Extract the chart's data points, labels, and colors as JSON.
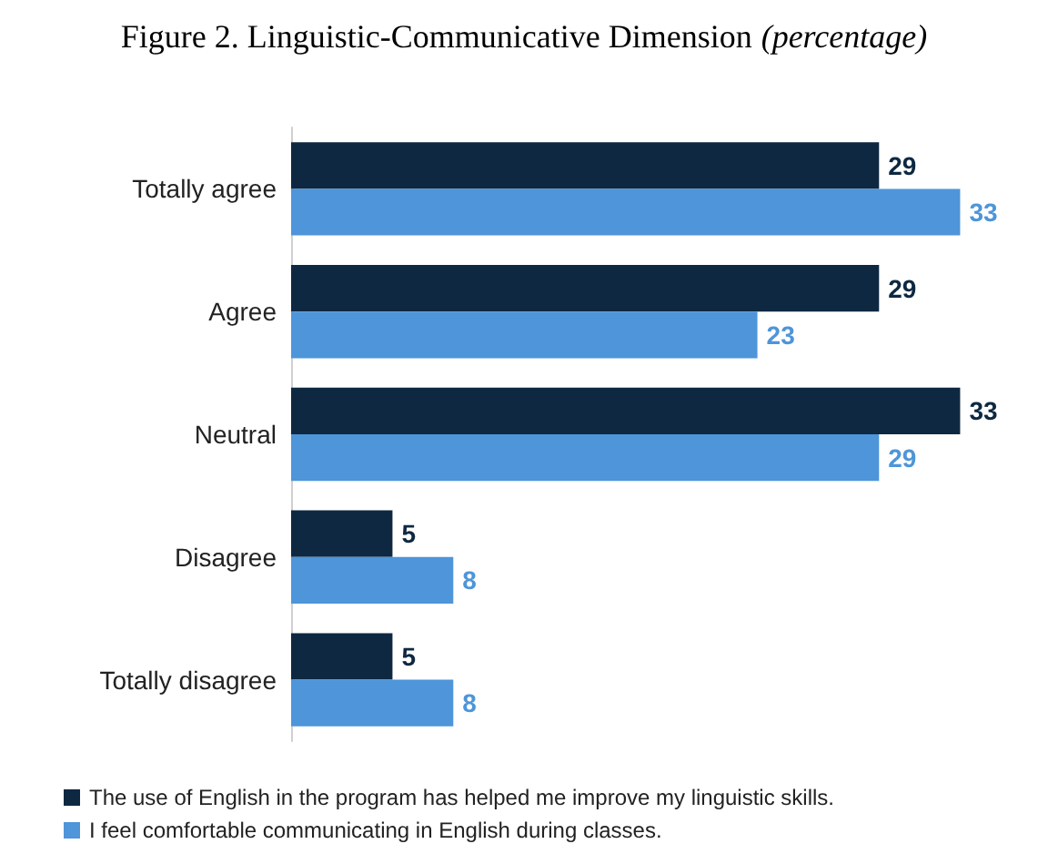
{
  "chart_data": {
    "type": "bar",
    "orientation": "horizontal",
    "title": "Figure 2. Linguistic-Communicative Dimension",
    "subtitle": "(percentage)",
    "categories": [
      "Totally agree",
      "Agree",
      "Neutral",
      "Disagree",
      "Totally disagree"
    ],
    "series": [
      {
        "name": "The use of English in the program has helped me improve my linguistic skills.",
        "color": "#0e2841",
        "values": [
          29,
          29,
          33,
          5,
          5
        ]
      },
      {
        "name": "I feel comfortable communicating in English during classes.",
        "color": "#4e95d9",
        "values": [
          33,
          23,
          29,
          8,
          8
        ]
      }
    ],
    "data_labels": true,
    "legend": "bottom"
  }
}
